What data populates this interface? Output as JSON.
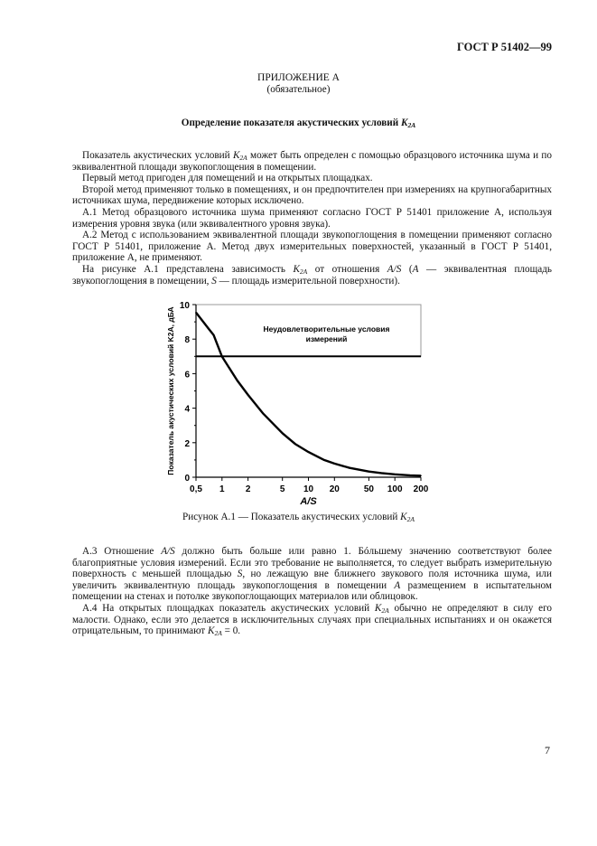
{
  "header": {
    "doc_id": "ГОСТ Р 51402—99"
  },
  "annex": {
    "title": "ПРИЛОЖЕНИЕ А",
    "status": "(обязательное)"
  },
  "section_title": [
    {
      "t": "Определение показателя акустических условий "
    },
    {
      "t": "K",
      "i": true
    },
    {
      "t": "2A",
      "i": true,
      "sub": true
    }
  ],
  "paragraphs_top": [
    [
      {
        "t": "Показатель акустических условий "
      },
      {
        "t": "K",
        "i": true
      },
      {
        "t": "2A",
        "i": true,
        "sub": true
      },
      {
        "t": "  может быть определен с помощью образцового источника шума и по эквивалентной площади звукопоглощения в помещении."
      }
    ],
    [
      {
        "t": "Первый метод пригоден для помещений и на открытых площадках."
      }
    ],
    [
      {
        "t": "Второй метод применяют только в помещениях, и он предпочтителен при измерениях на крупногабаритных источниках шума, передвижение которых исключено."
      }
    ],
    [
      {
        "t": "А.1  Метод образцового источника шума применяют согласно ГОСТ Р 51401 приложение А, используя измерения уровня звука (или эквивалентного уровня звука)."
      }
    ],
    [
      {
        "t": "А.2 Метод с использованием эквивалентной площади звукопоглощения в помещении применяют согласно ГОСТ Р 51401, приложение А. Метод двух измерительных поверхностей, указанный в ГОСТ Р 51401, приложение А, не применяют."
      }
    ],
    [
      {
        "t": "На рисунке А.1 представлена зависимость "
      },
      {
        "t": "K",
        "i": true
      },
      {
        "t": "2A",
        "i": true,
        "sub": true
      },
      {
        "t": "  от отношения "
      },
      {
        "t": "A/S",
        "i": true
      },
      {
        "t": " ("
      },
      {
        "t": "A",
        "i": true
      },
      {
        "t": " — эквивалентная площадь звукопоглощения в помещении, "
      },
      {
        "t": "S",
        "i": true
      },
      {
        "t": " — площадь измерительной поверхности)."
      }
    ]
  ],
  "figure_caption": [
    {
      "t": "Рисунок А.1 — Показатель акустических условий  "
    },
    {
      "t": "K",
      "i": true
    },
    {
      "t": "2A",
      "i": true,
      "sub": true
    }
  ],
  "paragraphs_bottom": [
    [
      {
        "t": "А.3 Отношение "
      },
      {
        "t": "A/S",
        "i": true
      },
      {
        "t": " должно быть больше или равно 1. Бóльшему значению соответствуют более благоприятные условия измерений. Если это требование не выполняется, то следует выбрать измерительную поверхность с меньшей площадью "
      },
      {
        "t": "S",
        "i": true
      },
      {
        "t": ", но лежащую вне ближнего звукового поля источника шума, или увеличить эквивалентную площадь звукопоглощения в помещении "
      },
      {
        "t": "A",
        "i": true
      },
      {
        "t": " размещением в испытательном помещении на стенах и потолке звукопоглощающих материалов или облицовок."
      }
    ],
    [
      {
        "t": "А.4 На открытых площадках показатель акустических условий "
      },
      {
        "t": "K",
        "i": true
      },
      {
        "t": "2A",
        "i": true,
        "sub": true
      },
      {
        "t": " обычно не определяют в силу его малости. Однако, если это делается в исключительных случаях при специальных испытаниях и он окажется отрицательным, то принимают "
      },
      {
        "t": "K",
        "i": true
      },
      {
        "t": "2A",
        "i": true,
        "sub": true
      },
      {
        "t": " = 0."
      }
    ]
  ],
  "page_number": "7",
  "chart_data": {
    "type": "line",
    "xlabel": "A/S",
    "ylabel": "Показатель акустических условий K2A, дБА",
    "x_scale": "log",
    "xlim": [
      0.5,
      200
    ],
    "ylim": [
      0,
      10
    ],
    "x_ticks": [
      "0,5",
      "1",
      "2",
      "5",
      "10",
      "20",
      "50",
      "100",
      "200"
    ],
    "x_tick_values": [
      0.5,
      1,
      2,
      5,
      10,
      20,
      50,
      100,
      200
    ],
    "y_ticks": [
      "0",
      "2",
      "4",
      "6",
      "8",
      "10"
    ],
    "y_tick_values": [
      0,
      2,
      4,
      6,
      8,
      10
    ],
    "grid": false,
    "threshold": 7,
    "region_label": "Неудовлетворительные условия измерений",
    "series": [
      {
        "x": [
          0.5,
          0.6,
          0.7,
          0.8,
          1,
          1.5,
          2,
          3,
          5,
          7,
          10,
          15,
          20,
          30,
          50,
          70,
          100,
          150,
          200
        ],
        "y": [
          9.54,
          9.03,
          8.6,
          8.24,
          6.99,
          5.6,
          4.77,
          3.68,
          2.55,
          1.93,
          1.46,
          1.01,
          0.79,
          0.54,
          0.33,
          0.24,
          0.17,
          0.11,
          0.09
        ]
      }
    ]
  }
}
